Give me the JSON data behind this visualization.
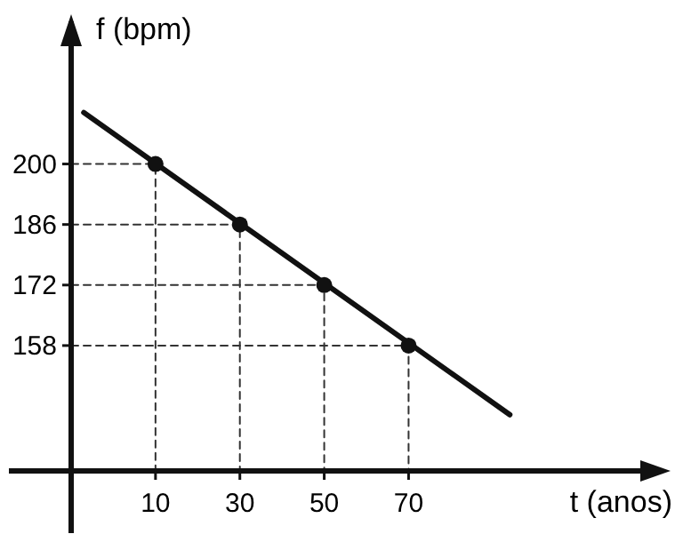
{
  "chart_data": {
    "type": "scatter",
    "xlabel": "t (anos)",
    "ylabel": "f (bpm)",
    "xlim": [
      -10,
      130
    ],
    "ylim": [
      129,
      233
    ],
    "xticks": [
      10,
      30,
      50,
      70
    ],
    "yticks": [
      158,
      172,
      186,
      200
    ],
    "grid": false,
    "marker": "circle",
    "series": [
      {
        "type": "line",
        "color": "#111111",
        "x": [
          -7,
          94
        ],
        "values": [
          211.9,
          142
        ],
        "marker": "none"
      },
      {
        "type": "line",
        "color": "#333333",
        "x": [
          -10,
          10,
          10
        ],
        "values": [
          200,
          200,
          129
        ],
        "marker": "none",
        "line_style": "dashed"
      },
      {
        "type": "line",
        "color": "#333333",
        "x": [
          -10,
          30,
          30
        ],
        "values": [
          186,
          186,
          129
        ],
        "marker": "none",
        "line_style": "dashed"
      },
      {
        "type": "line",
        "color": "#333333",
        "x": [
          -10,
          50,
          50
        ],
        "values": [
          172,
          172,
          129
        ],
        "marker": "none",
        "line_style": "dashed"
      },
      {
        "type": "line",
        "color": "#333333",
        "x": [
          -10,
          70,
          70
        ],
        "values": [
          158,
          158,
          129
        ],
        "marker": "none",
        "line_style": "dashed"
      },
      {
        "color": "#111111",
        "x": [
          10,
          30,
          50,
          70
        ],
        "values": [
          200,
          186,
          172,
          158
        ]
      }
    ]
  }
}
